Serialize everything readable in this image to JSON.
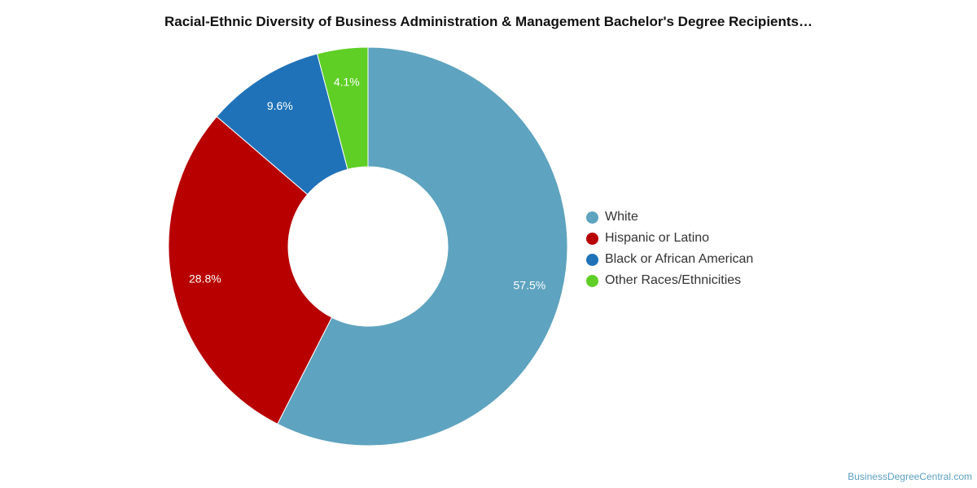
{
  "chart_data": {
    "type": "pie",
    "title": "Racial-Ethnic Diversity of Business Administration & Management Bachelor's Degree Recipients…",
    "donut": true,
    "categories": [
      "White",
      "Hispanic or Latino",
      "Black or African American",
      "Other Races/Ethnicities"
    ],
    "values": [
      57.5,
      28.8,
      9.6,
      4.1
    ],
    "labels": [
      "57.5%",
      "28.8%",
      "9.6%",
      "4.1%"
    ],
    "colors": [
      "#5ea3bf",
      "#b80000",
      "#1f72b8",
      "#5fcf26"
    ],
    "legend_position": "right"
  },
  "watermark": "BusinessDegreeCentral.com"
}
